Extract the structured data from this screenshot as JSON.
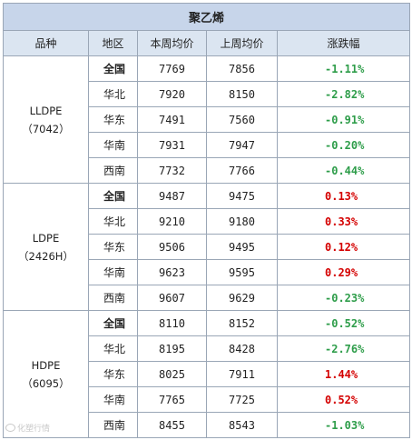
{
  "table": {
    "title": "聚乙烯",
    "headers": [
      "品种",
      "地区",
      "本周均价",
      "上周均价",
      "涨跌幅"
    ],
    "groups": [
      {
        "product_name": "LLDPE",
        "product_code": "（7042）",
        "rows": [
          {
            "region": "全国",
            "this_week": "7769",
            "last_week": "7856",
            "change": "-1.11%",
            "direction": "down"
          },
          {
            "region": "华北",
            "this_week": "7920",
            "last_week": "8150",
            "change": "-2.82%",
            "direction": "down"
          },
          {
            "region": "华东",
            "this_week": "7491",
            "last_week": "7560",
            "change": "-0.91%",
            "direction": "down"
          },
          {
            "region": "华南",
            "this_week": "7931",
            "last_week": "7947",
            "change": "-0.20%",
            "direction": "down"
          },
          {
            "region": "西南",
            "this_week": "7732",
            "last_week": "7766",
            "change": "-0.44%",
            "direction": "down"
          }
        ]
      },
      {
        "product_name": "LDPE",
        "product_code": "（2426H）",
        "rows": [
          {
            "region": "全国",
            "this_week": "9487",
            "last_week": "9475",
            "change": "0.13%",
            "direction": "up"
          },
          {
            "region": "华北",
            "this_week": "9210",
            "last_week": "9180",
            "change": "0.33%",
            "direction": "up"
          },
          {
            "region": "华东",
            "this_week": "9506",
            "last_week": "9495",
            "change": "0.12%",
            "direction": "up"
          },
          {
            "region": "华南",
            "this_week": "9623",
            "last_week": "9595",
            "change": "0.29%",
            "direction": "up"
          },
          {
            "region": "西南",
            "this_week": "9607",
            "last_week": "9629",
            "change": "-0.23%",
            "direction": "down"
          }
        ]
      },
      {
        "product_name": "HDPE",
        "product_code": "（6095）",
        "rows": [
          {
            "region": "全国",
            "this_week": "8110",
            "last_week": "8152",
            "change": "-0.52%",
            "direction": "down"
          },
          {
            "region": "华北",
            "this_week": "8195",
            "last_week": "8428",
            "change": "-2.76%",
            "direction": "down"
          },
          {
            "region": "华东",
            "this_week": "8025",
            "last_week": "7911",
            "change": "1.44%",
            "direction": "up"
          },
          {
            "region": "华南",
            "this_week": "7765",
            "last_week": "7725",
            "change": "0.52%",
            "direction": "up"
          },
          {
            "region": "西南",
            "this_week": "8455",
            "last_week": "8543",
            "change": "-1.03%",
            "direction": "down"
          }
        ]
      }
    ]
  },
  "colors": {
    "title_bg": "#c7d5ea",
    "header_bg": "#dbe5f1",
    "border": "#9aa6b6",
    "increase": "#d40000",
    "decrease": "#2e9d4a"
  },
  "watermark": {
    "icon": "weibo-icon",
    "text": "化塑行情"
  }
}
